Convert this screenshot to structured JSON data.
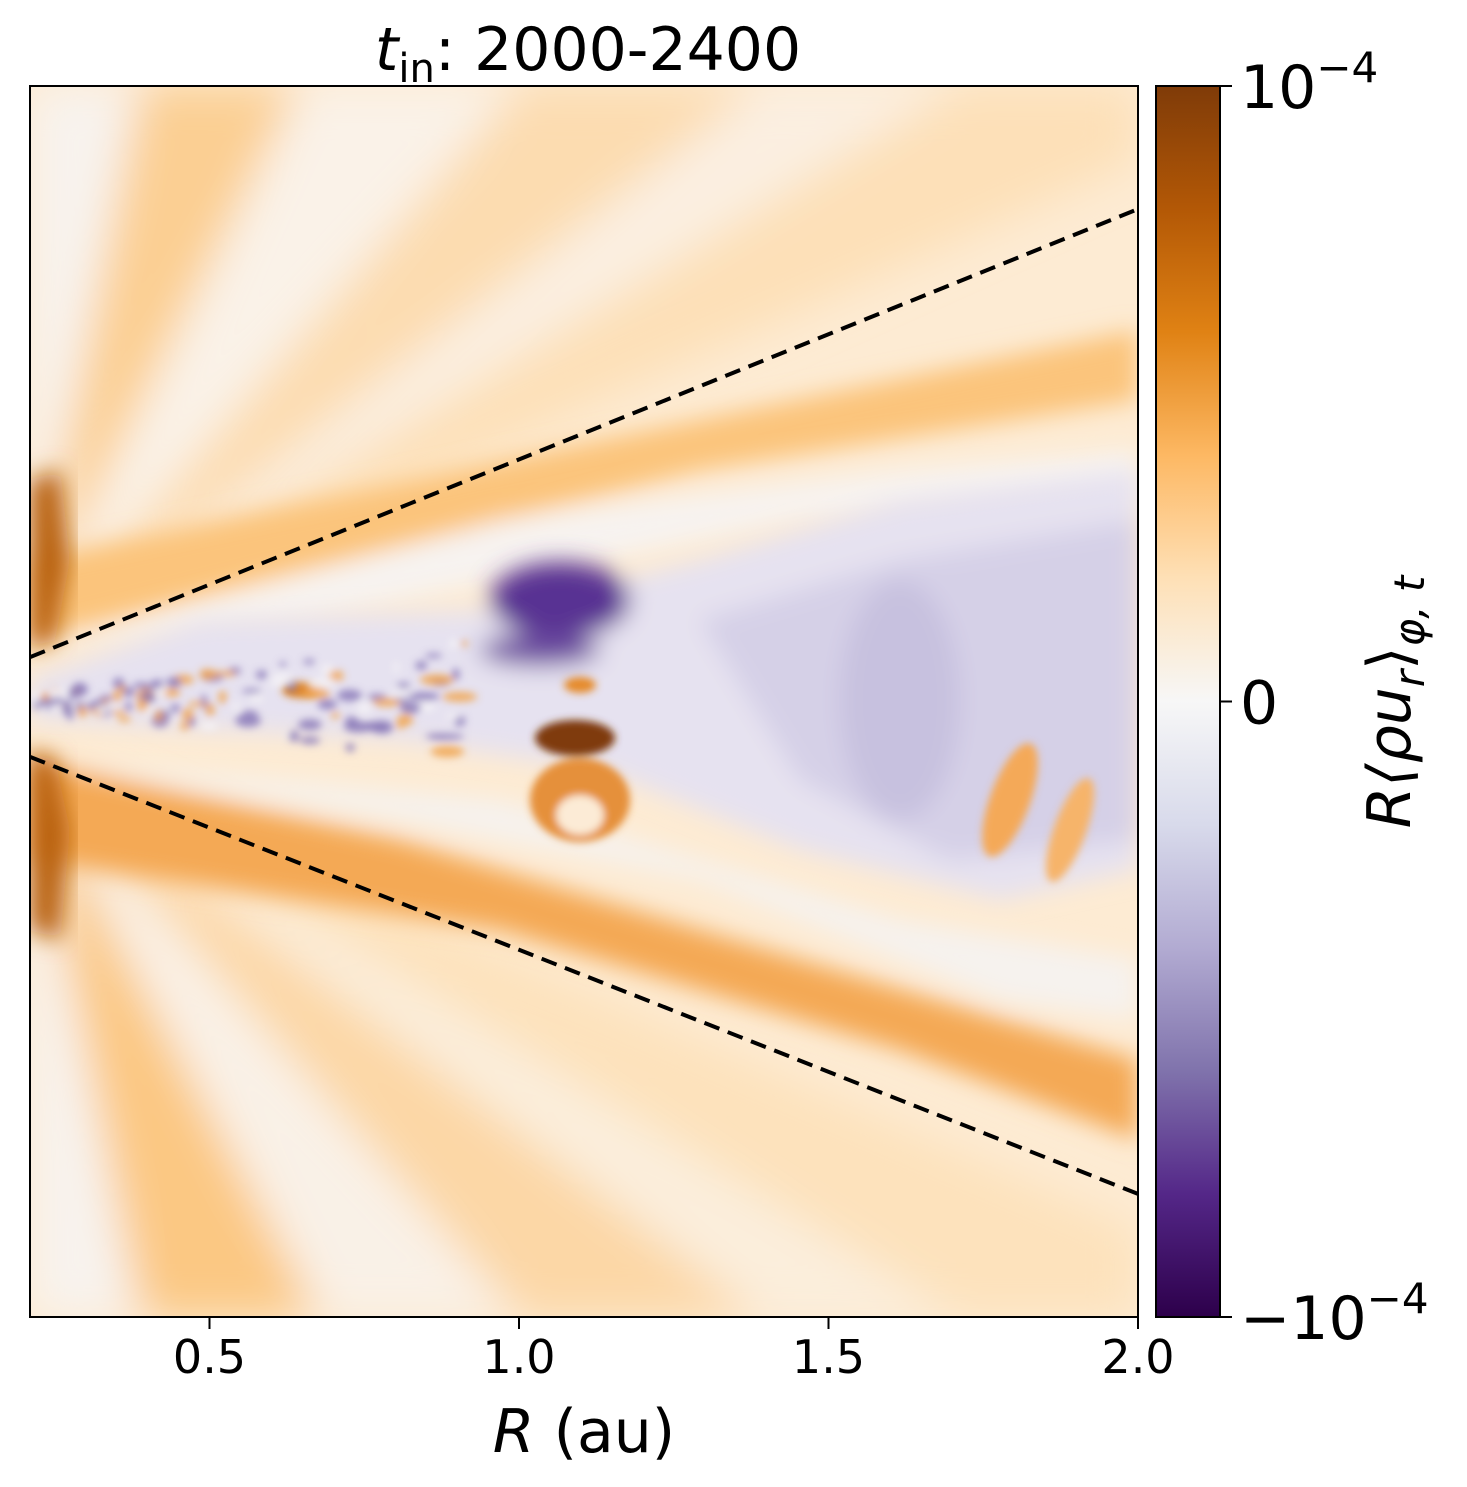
{
  "chart_data": {
    "type": "heatmap",
    "title": "t",
    "title_subscript": "in",
    "title_rest": ": 2000-2400",
    "xlabel": "R (au)",
    "xlim": [
      0.21,
      2.0
    ],
    "xticks": [
      0.5,
      1.0,
      1.5,
      2.0
    ],
    "xtick_labels": [
      "0.5",
      "1.0",
      "1.5",
      "2.0"
    ],
    "colorbar": {
      "label": "R⟨ρu_r⟩_φ,t",
      "label_main": "R⟨ρu",
      "label_sub1": "r",
      "label_close": "⟩",
      "label_sub2": "φ, t",
      "range": [
        -0.0001,
        0.0001
      ],
      "tick_values": [
        0.0001,
        0,
        -0.0001
      ],
      "ticks": [
        {
          "base": "10",
          "exp": "−4"
        },
        {
          "base": "0",
          "exp": ""
        },
        {
          "base": "−10",
          "exp": "−4"
        }
      ],
      "colormap": "PuOr_r",
      "colors": [
        "#2d004b",
        "#542788",
        "#8073ac",
        "#b2abd2",
        "#d8daeb",
        "#f7f7f7",
        "#fee0b6",
        "#fdb863",
        "#e08214",
        "#b35806",
        "#7f3b08"
      ]
    },
    "overlay_lines": [
      {
        "style": "dashed",
        "color": "#000000",
        "from": {
          "x": 0.21,
          "y_fraction": 0.464
        },
        "to": {
          "x": 2.0,
          "y_fraction": 0.1
        }
      },
      {
        "style": "dashed",
        "color": "#000000",
        "from": {
          "x": 0.21,
          "y_fraction": 0.545
        },
        "to": {
          "x": 2.0,
          "y_fraction": 0.9
        }
      }
    ]
  }
}
